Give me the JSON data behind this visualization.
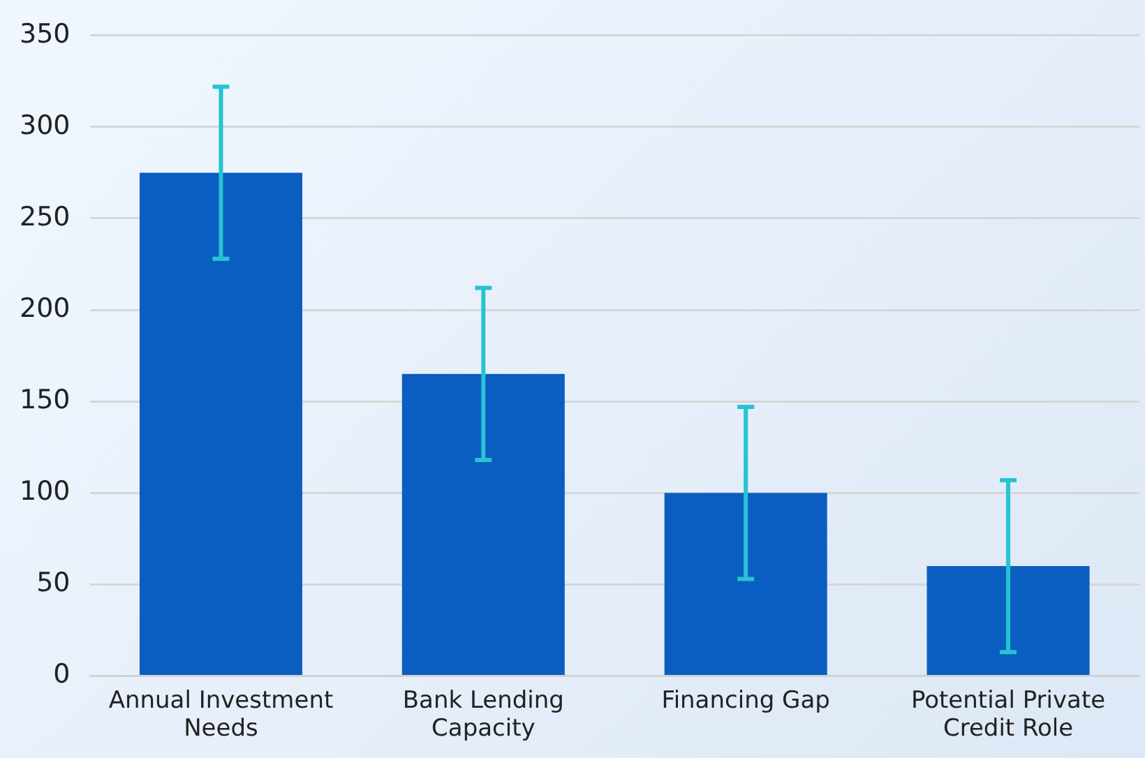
{
  "chart_data": {
    "type": "bar",
    "categories": [
      "Annual Investment Needs",
      "Bank Lending Capacity",
      "Financing Gap",
      "Potential Private Credit Role"
    ],
    "values": [
      275,
      165,
      100,
      60
    ],
    "errors": [
      47,
      47,
      47,
      47
    ],
    "color": "#0b5ec1",
    "ylim": [
      0,
      350
    ],
    "yticks": [
      0,
      50,
      100,
      150,
      200,
      250,
      300,
      350
    ],
    "grid": "y"
  }
}
